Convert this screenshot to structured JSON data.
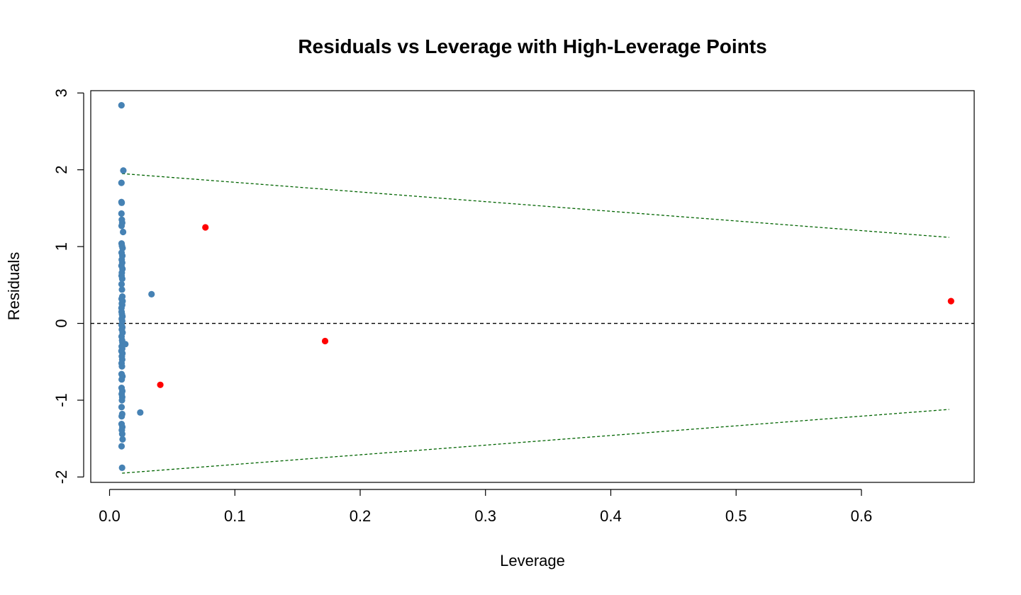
{
  "chart_data": {
    "type": "scatter",
    "title": "Residuals vs Leverage with High-Leverage Points",
    "xlabel": "Leverage",
    "ylabel": "Residuals",
    "xlim": [
      -0.015,
      0.69
    ],
    "ylim": [
      -2.07,
      3.03
    ],
    "x_ticks": [
      0.0,
      0.1,
      0.2,
      0.3,
      0.4,
      0.5,
      0.6
    ],
    "x_tick_labels": [
      "0.0",
      "0.1",
      "0.2",
      "0.3",
      "0.4",
      "0.5",
      "0.6"
    ],
    "y_ticks": [
      -2,
      -1,
      0,
      1,
      2,
      3
    ],
    "y_tick_labels": [
      "-2",
      "-1",
      "0",
      "1",
      "2",
      "3"
    ],
    "grid": false,
    "legend": "none",
    "colors": {
      "normal_points": "#4682B4",
      "high_leverage_points": "#FF0000",
      "zero_line": "#000000",
      "bound_lines": "#006400"
    },
    "reference_lines": [
      {
        "kind": "zero",
        "style": "dashed",
        "x": [
          -0.015,
          0.69
        ],
        "y": [
          0,
          0
        ]
      },
      {
        "kind": "upper-bound",
        "style": "dashed",
        "x": [
          0.01,
          0.67
        ],
        "y": [
          1.95,
          1.12
        ]
      },
      {
        "kind": "lower-bound",
        "style": "dashed",
        "x": [
          0.01,
          0.67
        ],
        "y": [
          -1.95,
          -1.12
        ]
      }
    ],
    "series": [
      {
        "group": "normal",
        "points": [
          [
            0.0095,
            2.84
          ],
          [
            0.011,
            1.99
          ],
          [
            0.0095,
            1.83
          ],
          [
            0.0095,
            1.58
          ],
          [
            0.0097,
            1.57
          ],
          [
            0.0095,
            1.43
          ],
          [
            0.0098,
            1.35
          ],
          [
            0.0101,
            1.31
          ],
          [
            0.0096,
            1.27
          ],
          [
            0.0108,
            1.19
          ],
          [
            0.0096,
            1.04
          ],
          [
            0.0099,
            1.01
          ],
          [
            0.0104,
            0.98
          ],
          [
            0.0096,
            0.92
          ],
          [
            0.0102,
            0.88
          ],
          [
            0.0097,
            0.83
          ],
          [
            0.0101,
            0.79
          ],
          [
            0.0095,
            0.75
          ],
          [
            0.0103,
            0.71
          ],
          [
            0.0098,
            0.66
          ],
          [
            0.0096,
            0.62
          ],
          [
            0.0101,
            0.58
          ],
          [
            0.0096,
            0.51
          ],
          [
            0.0099,
            0.44
          ],
          [
            0.0102,
            0.35
          ],
          [
            0.0096,
            0.32
          ],
          [
            0.0104,
            0.29
          ],
          [
            0.0098,
            0.26
          ],
          [
            0.0101,
            0.24
          ],
          [
            0.0095,
            0.2
          ],
          [
            0.0096,
            0.15
          ],
          [
            0.0099,
            0.12
          ],
          [
            0.0103,
            0.09
          ],
          [
            0.0097,
            0.06
          ],
          [
            0.0101,
            0.03
          ],
          [
            0.0096,
            -0.02
          ],
          [
            0.0102,
            -0.05
          ],
          [
            0.0098,
            -0.08
          ],
          [
            0.0104,
            -0.12
          ],
          [
            0.0096,
            -0.17
          ],
          [
            0.01,
            -0.22
          ],
          [
            0.0103,
            -0.25
          ],
          [
            0.0126,
            -0.27
          ],
          [
            0.0097,
            -0.3
          ],
          [
            0.0101,
            -0.33
          ],
          [
            0.0095,
            -0.36
          ],
          [
            0.0103,
            -0.39
          ],
          [
            0.0098,
            -0.43
          ],
          [
            0.0101,
            -0.47
          ],
          [
            0.0096,
            -0.52
          ],
          [
            0.0099,
            -0.56
          ],
          [
            0.0096,
            -0.66
          ],
          [
            0.0103,
            -0.69
          ],
          [
            0.0097,
            -0.73
          ],
          [
            0.0096,
            -0.84
          ],
          [
            0.0102,
            -0.88
          ],
          [
            0.0097,
            -0.92
          ],
          [
            0.0101,
            -0.96
          ],
          [
            0.0099,
            -1.0
          ],
          [
            0.0096,
            -1.09
          ],
          [
            0.0101,
            -1.18
          ],
          [
            0.0097,
            -1.21
          ],
          [
            0.0096,
            -1.31
          ],
          [
            0.0102,
            -1.35
          ],
          [
            0.0098,
            -1.39
          ],
          [
            0.0101,
            -1.44
          ],
          [
            0.0104,
            -1.51
          ],
          [
            0.0096,
            -1.6
          ],
          [
            0.01,
            -1.88
          ],
          [
            0.0335,
            0.38
          ],
          [
            0.0245,
            -1.16
          ]
        ]
      },
      {
        "group": "high-leverage",
        "points": [
          [
            0.0765,
            1.25
          ],
          [
            0.0405,
            -0.8
          ],
          [
            0.172,
            -0.23
          ],
          [
            0.6715,
            0.29
          ]
        ]
      }
    ]
  }
}
